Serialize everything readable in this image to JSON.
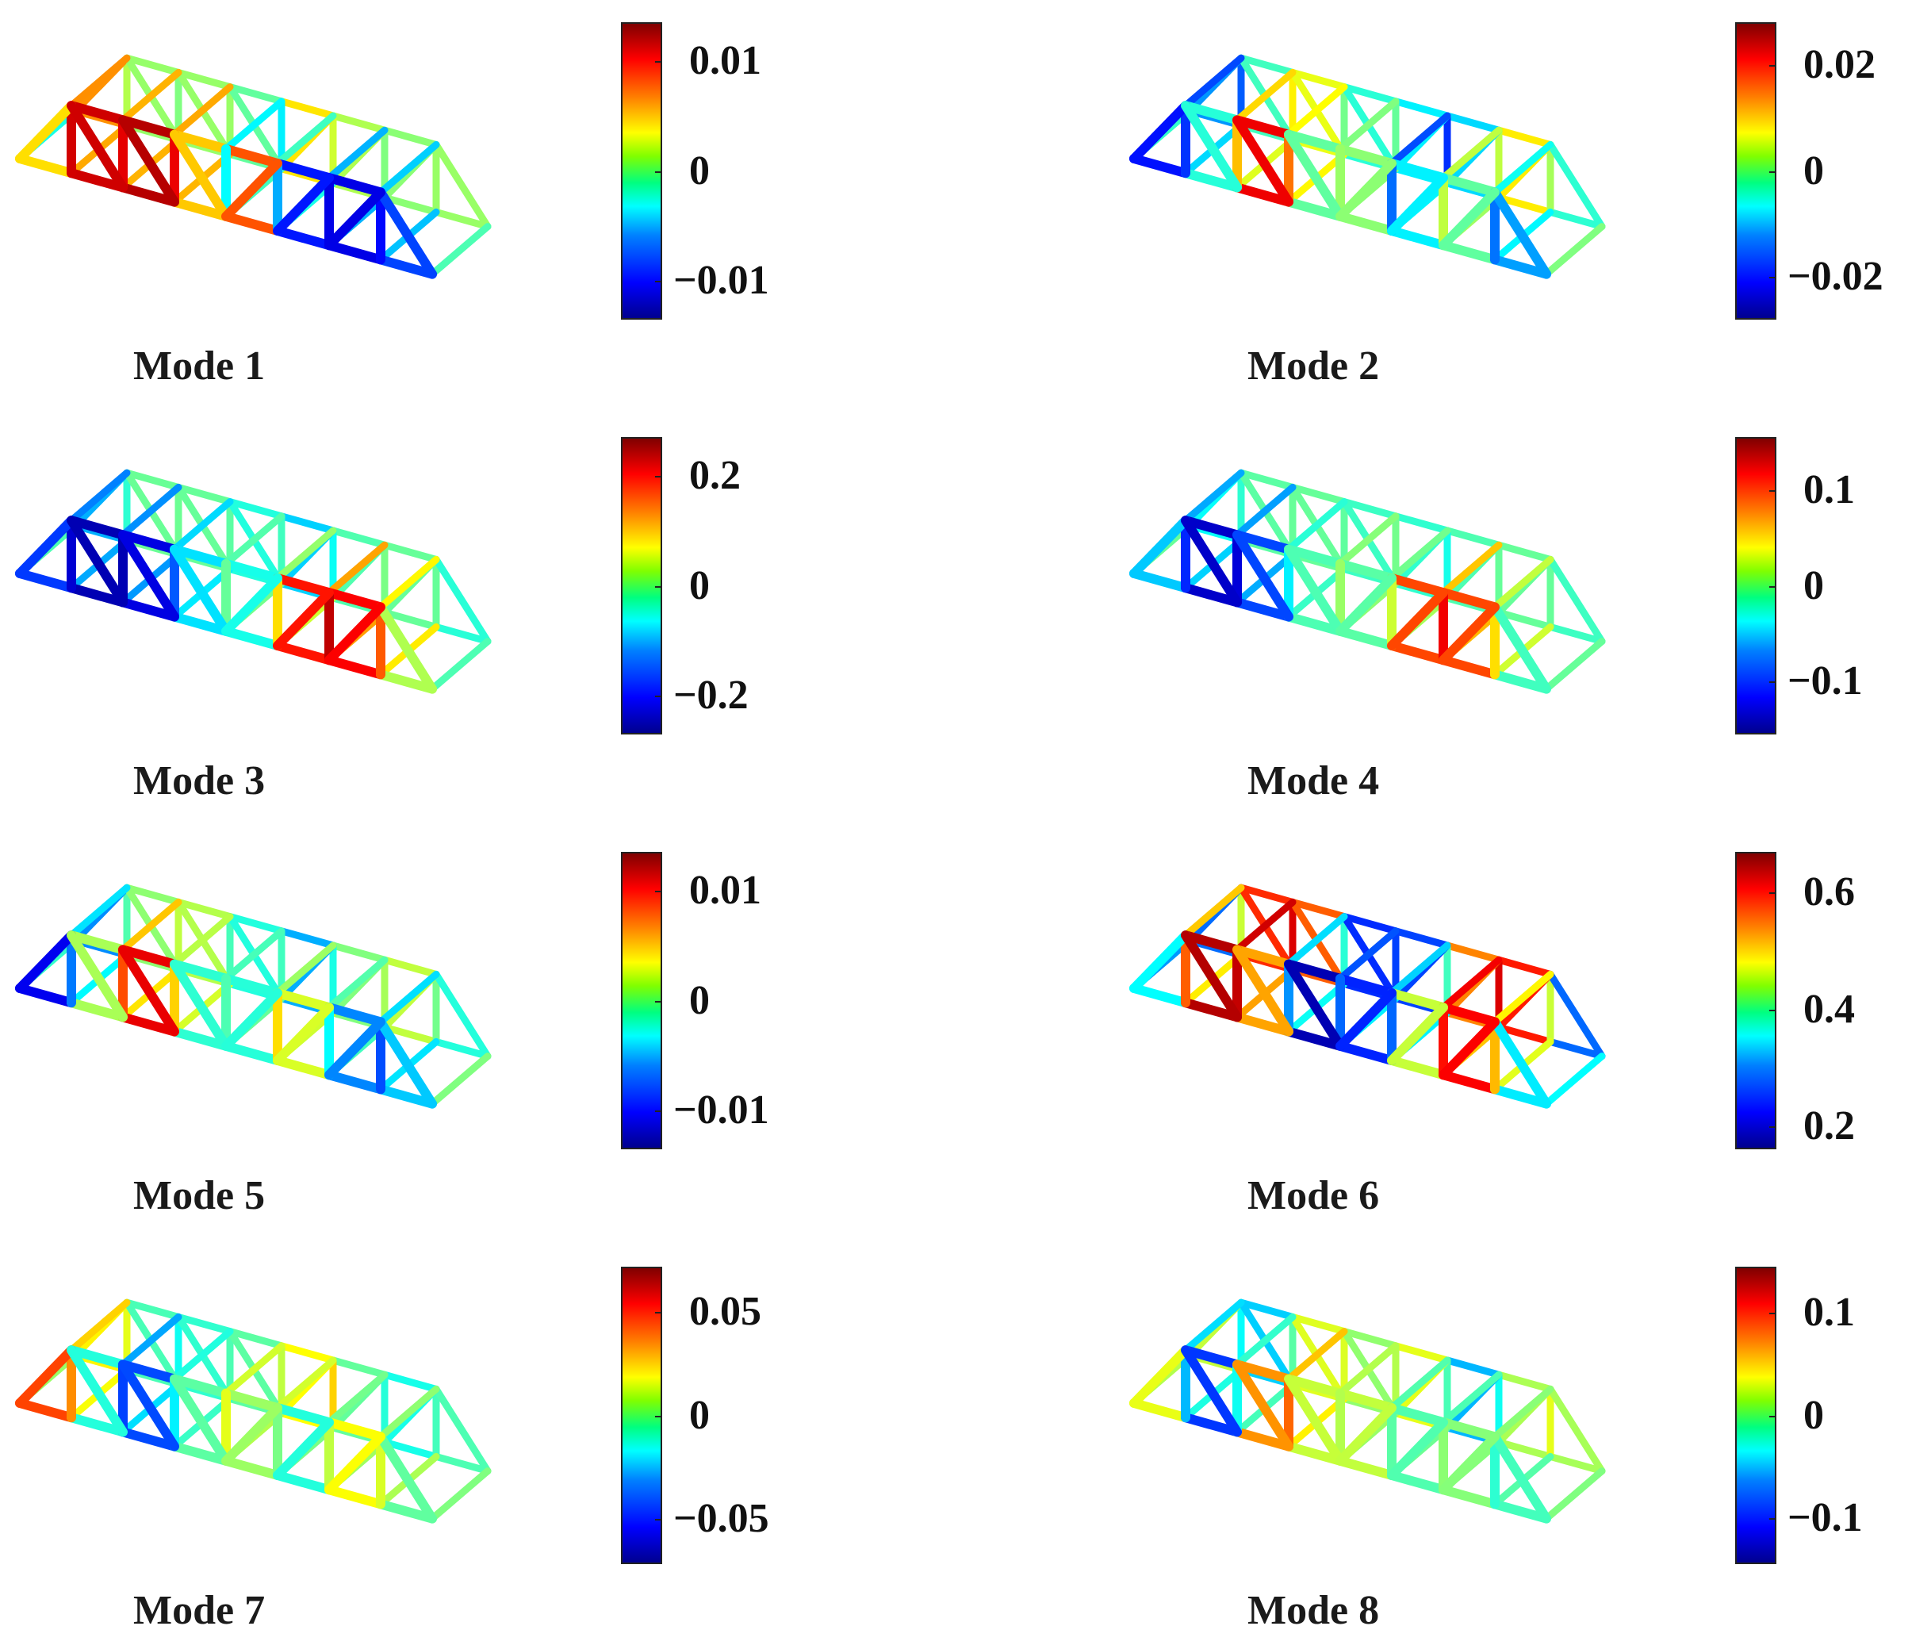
{
  "panels": [
    {
      "label": "Mode 1",
      "colorbar_ticks": [
        {
          "text": "0.01",
          "v": 0.01
        },
        {
          "text": "0",
          "v": 0
        },
        {
          "text": "−0.01",
          "v": -0.01
        }
      ],
      "range": [
        -0.0135,
        0.0135
      ],
      "segments": [
        0.3,
        0.6,
        0.9,
        0.95,
        0.9,
        0.9,
        0.95,
        0.9,
        0.85,
        0.3,
        0.45,
        0.95,
        0.2,
        0.15,
        0.1,
        0.1,
        0.1,
        0.15,
        0.2,
        0.4
      ]
    },
    {
      "label": "Mode 2",
      "colorbar_ticks": [
        {
          "text": "0.02",
          "v": 0.02
        },
        {
          "text": "0",
          "v": 0
        },
        {
          "text": "−0.02",
          "v": -0.02
        }
      ],
      "range": [
        -0.028,
        0.028
      ],
      "segments": [
        0.35,
        0.15,
        0.1,
        0.3,
        0.5,
        0.75,
        0.9,
        0.8,
        0.5,
        0.4,
        0.65,
        0.45,
        0.2,
        0.35,
        0.55,
        0.6,
        0.3,
        0.2,
        0.3,
        0.5
      ]
    },
    {
      "label": "Mode 3",
      "colorbar_ticks": [
        {
          "text": "0.2",
          "v": 0.2
        },
        {
          "text": "0",
          "v": 0
        },
        {
          "text": "−0.2",
          "v": -0.2
        }
      ],
      "range": [
        -0.27,
        0.27
      ],
      "segments": [
        0.4,
        0.2,
        0.1,
        0.05,
        0.05,
        0.05,
        0.1,
        0.2,
        0.3,
        0.45,
        0.5,
        0.35,
        0.7,
        0.85,
        0.95,
        0.9,
        0.85,
        0.75,
        0.5,
        0.4
      ]
    },
    {
      "label": "Mode 4",
      "colorbar_ticks": [
        {
          "text": "0.1",
          "v": 0.1
        },
        {
          "text": "0",
          "v": 0
        },
        {
          "text": "−0.1",
          "v": -0.1
        }
      ],
      "range": [
        -0.155,
        0.155
      ],
      "segments": [
        0.45,
        0.35,
        0.2,
        0.1,
        0.05,
        0.1,
        0.2,
        0.35,
        0.45,
        0.45,
        0.6,
        0.4,
        0.6,
        0.8,
        0.9,
        0.85,
        0.75,
        0.6,
        0.4,
        0.45
      ]
    },
    {
      "label": "Mode 5",
      "colorbar_ticks": [
        {
          "text": "0.01",
          "v": 0.01
        },
        {
          "text": "0",
          "v": 0
        },
        {
          "text": "−0.01",
          "v": -0.01
        }
      ],
      "range": [
        -0.0135,
        0.0135
      ],
      "segments": [
        0.35,
        0.1,
        0.15,
        0.4,
        0.65,
        0.85,
        0.9,
        0.7,
        0.45,
        0.35,
        0.55,
        0.35,
        0.7,
        0.6,
        0.4,
        0.3,
        0.2,
        0.2,
        0.35,
        0.5
      ]
    },
    {
      "label": "Mode 6",
      "colorbar_ticks": [
        {
          "text": "0.6",
          "v": 0.6
        },
        {
          "text": "0.4",
          "v": 0.4
        },
        {
          "text": "0.2",
          "v": 0.2
        }
      ],
      "range": [
        0.16,
        0.67
      ],
      "segments": [
        0.05,
        0.3,
        0.7,
        0.92,
        0.97,
        0.92,
        0.7,
        0.3,
        0.05,
        0.05,
        0.4,
        0.05,
        0.25,
        0.55,
        0.85,
        0.9,
        0.85,
        0.6,
        0.3,
        0.25
      ]
    },
    {
      "label": "Mode 7",
      "colorbar_ticks": [
        {
          "text": "0.05",
          "v": 0.05
        },
        {
          "text": "0",
          "v": 0
        },
        {
          "text": "−0.05",
          "v": -0.05
        }
      ],
      "range": [
        -0.072,
        0.072
      ],
      "segments": [
        0.55,
        0.8,
        0.85,
        0.55,
        0.3,
        0.15,
        0.2,
        0.35,
        0.45,
        0.5,
        0.7,
        0.45,
        0.5,
        0.4,
        0.55,
        0.6,
        0.65,
        0.55,
        0.45,
        0.5
      ]
    },
    {
      "label": "Mode 8",
      "colorbar_ticks": [
        {
          "text": "0.1",
          "v": 0.1
        },
        {
          "text": "0",
          "v": 0
        },
        {
          "text": "−0.1",
          "v": -0.1
        }
      ],
      "range": [
        -0.145,
        0.145
      ],
      "segments": [
        0.6,
        0.65,
        0.4,
        0.15,
        0.2,
        0.45,
        0.75,
        0.8,
        0.6,
        0.5,
        0.6,
        0.55,
        0.45,
        0.45,
        0.5,
        0.55,
        0.45,
        0.4,
        0.45,
        0.5
      ]
    }
  ]
}
